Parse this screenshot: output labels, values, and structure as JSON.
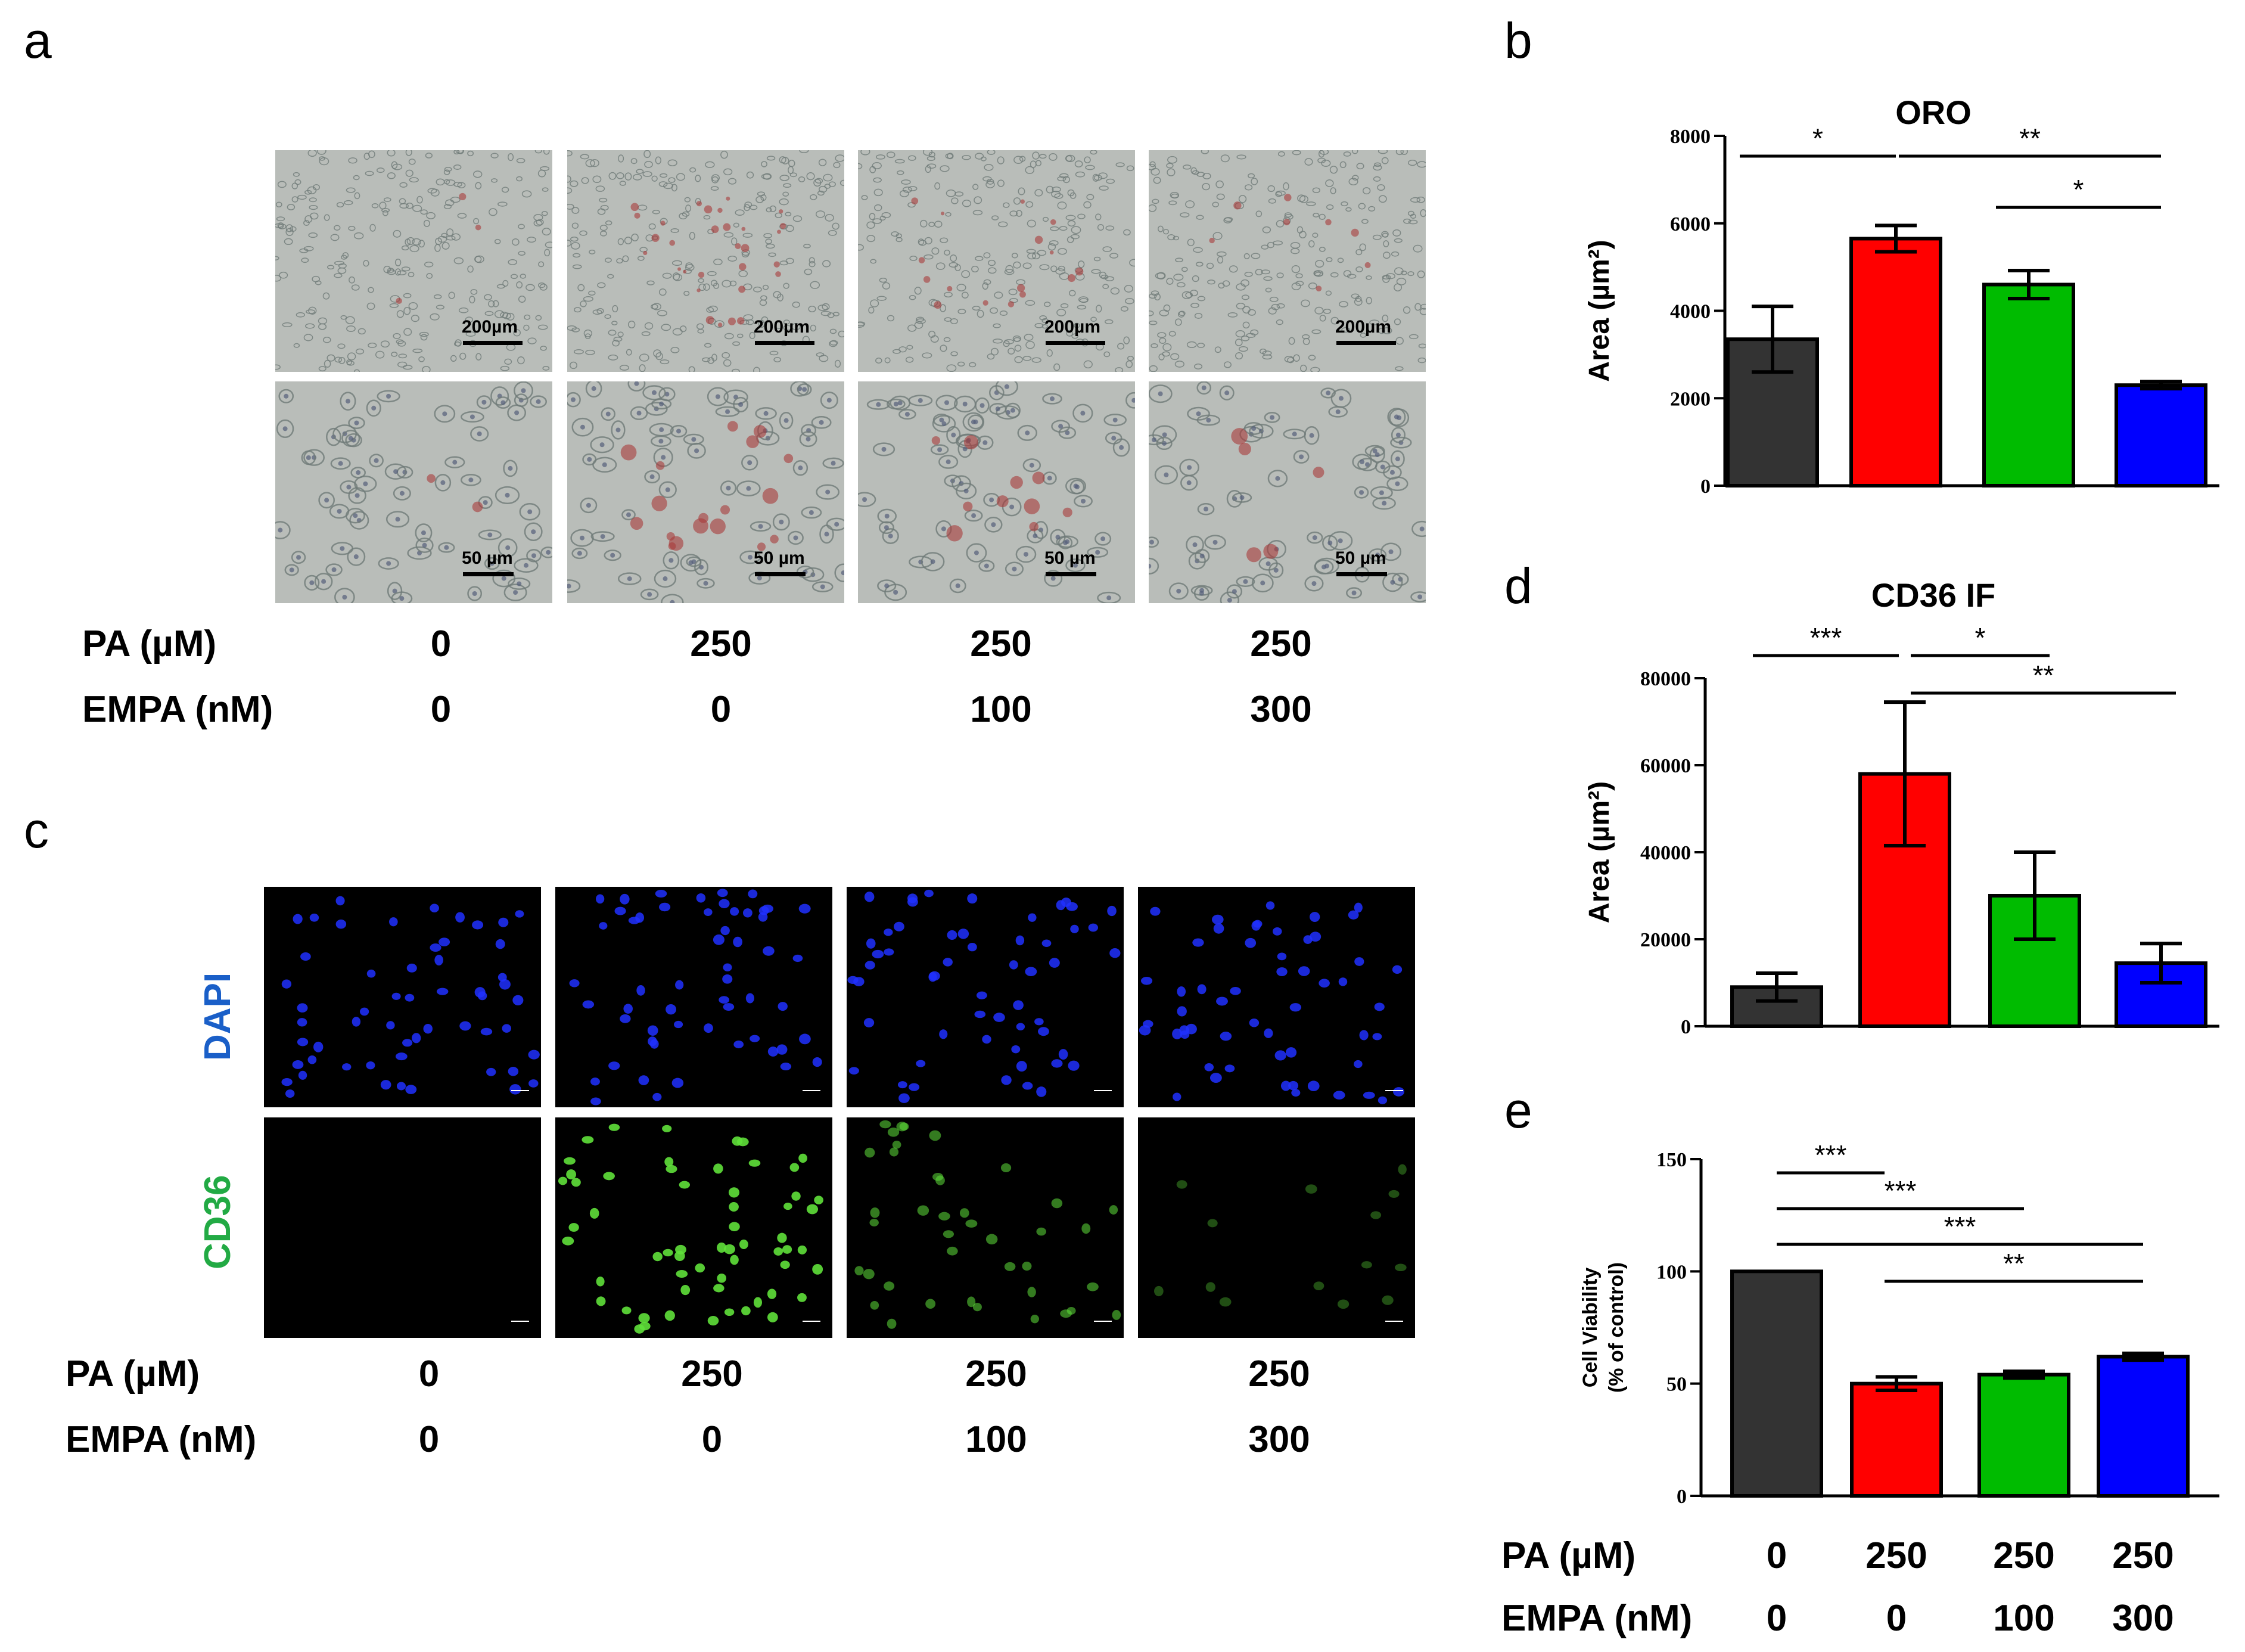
{
  "panels": {
    "a": {
      "letter": "a",
      "scale_bars_top": [
        "200µm",
        "200µm",
        "200µm",
        "200µm"
      ],
      "scale_bars_bottom": [
        "50 µm",
        "50 µm",
        "50 µm",
        "50 µm"
      ],
      "pa_label": "PA (µM)",
      "pa_values": [
        "0",
        "250",
        "250",
        "250"
      ],
      "empa_label": "EMPA (nM)",
      "empa_values": [
        "0",
        "0",
        "100",
        "300"
      ]
    },
    "c": {
      "letter": "c",
      "stain_top": "DAPI",
      "stain_bottom": "CD36",
      "pa_label": "PA (µM)",
      "pa_values": [
        "0",
        "250",
        "250",
        "250"
      ],
      "empa_label": "EMPA (nM)",
      "empa_values": [
        "0",
        "0",
        "100",
        "300"
      ]
    },
    "e_conditions": {
      "pa_label": "PA (µM)",
      "pa_values": [
        "0",
        "250",
        "250",
        "250"
      ],
      "empa_label": "EMPA (nM)",
      "empa_values": [
        "0",
        "0",
        "100",
        "300"
      ]
    }
  },
  "colors": {
    "bar_colors": [
      "#333333",
      "#ff0000",
      "#00bb00",
      "#0000ff"
    ],
    "dapi": "#1a5fc8",
    "cd36": "#22aa44",
    "micro_bg": "#b9bdb9",
    "fluor_bg": "#000000"
  },
  "chart_data": [
    {
      "panel": "b",
      "type": "bar",
      "title": "ORO",
      "ylabel": "Area (µm²)",
      "ylim": [
        0,
        8000
      ],
      "yticks": [
        "0",
        "2000",
        "4000",
        "6000",
        "8000"
      ],
      "values": [
        3350,
        5650,
        4600,
        2300
      ],
      "errors": [
        750,
        300,
        320,
        80
      ],
      "significance": [
        {
          "from": 0,
          "to": 1,
          "label": "*"
        },
        {
          "from": 1,
          "to": 3,
          "label": "**"
        },
        {
          "from": 2,
          "to": 3,
          "label": "*"
        }
      ]
    },
    {
      "panel": "d",
      "type": "bar",
      "title": "CD36 IF",
      "ylabel": "Area (µm²)",
      "ylim": [
        0,
        80000
      ],
      "yticks": [
        "0",
        "20000",
        "40000",
        "60000",
        "80000"
      ],
      "values": [
        9000,
        58000,
        30000,
        14500
      ],
      "errors": [
        3200,
        16500,
        10000,
        4500
      ],
      "significance": [
        {
          "from": 0,
          "to": 1,
          "label": "***"
        },
        {
          "from": 1,
          "to": 2,
          "label": "*"
        },
        {
          "from": 1,
          "to": 3,
          "label": "**"
        }
      ]
    },
    {
      "panel": "e",
      "type": "bar",
      "title": "",
      "ylabel": "Cell Viability (% of control)",
      "ylim": [
        0,
        150
      ],
      "yticks": [
        "0",
        "50",
        "100",
        "150"
      ],
      "values": [
        100,
        50,
        54,
        62
      ],
      "errors": [
        0,
        3,
        1.5,
        1.5
      ],
      "significance": [
        {
          "from": 0,
          "to": 1,
          "label": "***"
        },
        {
          "from": 0,
          "to": 2,
          "label": "***"
        },
        {
          "from": 0,
          "to": 3,
          "label": "***"
        },
        {
          "from": 1,
          "to": 3,
          "label": "**"
        }
      ]
    }
  ]
}
